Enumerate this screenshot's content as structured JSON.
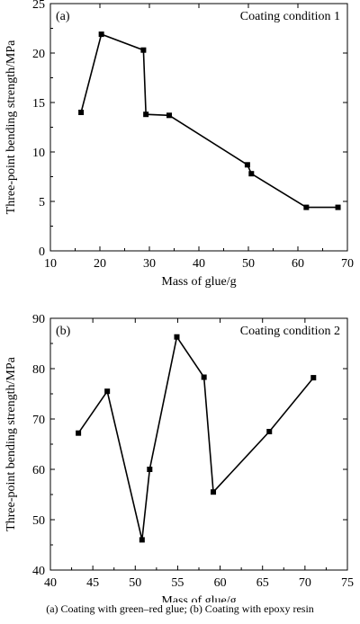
{
  "chart_data": [
    {
      "type": "line",
      "panel_label": "(a)",
      "annotation": "Coating condition 1",
      "xlabel": "Mass of glue/g",
      "ylabel": "Three-point bending strength/MPa",
      "xlim": [
        10,
        70
      ],
      "ylim": [
        0,
        25
      ],
      "xticks": [
        10,
        20,
        30,
        40,
        50,
        60,
        70
      ],
      "yticks": [
        0,
        5,
        10,
        15,
        20,
        25
      ],
      "grid": false,
      "series": [
        {
          "x": [
            16.2,
            20.3,
            28.8,
            29.3,
            34.0,
            49.8,
            50.6,
            61.7,
            68.1
          ],
          "y": [
            14.0,
            21.9,
            20.3,
            13.8,
            13.7,
            8.7,
            7.8,
            4.4,
            4.4
          ]
        }
      ]
    },
    {
      "type": "line",
      "panel_label": "(b)",
      "annotation": "Coating condition 2",
      "xlabel": "Mass of glue/g",
      "ylabel": "Three-point bending strength/MPa",
      "xlim": [
        40,
        75
      ],
      "ylim": [
        40,
        90
      ],
      "xticks": [
        40,
        45,
        50,
        55,
        60,
        65,
        70,
        75
      ],
      "yticks": [
        40,
        50,
        60,
        70,
        80,
        90
      ],
      "grid": false,
      "series": [
        {
          "x": [
            43.3,
            46.7,
            50.8,
            51.7,
            54.9,
            58.1,
            59.2,
            65.8,
            71.0
          ],
          "y": [
            67.2,
            75.5,
            46.0,
            60.0,
            86.3,
            78.3,
            55.5,
            67.5,
            78.2
          ]
        }
      ]
    }
  ],
  "caption": "(a) Coating with green–red glue; (b) Coating with epoxy resin"
}
